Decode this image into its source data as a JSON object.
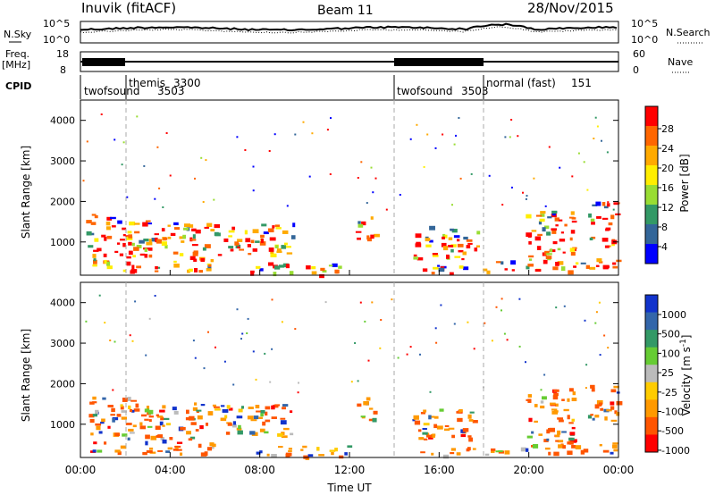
{
  "header": {
    "station": "Inuvik (fitACF)",
    "beam": "Beam 11",
    "date": "28/Nov/2015"
  },
  "chart_data": [
    {
      "type": "line",
      "panel": "noise",
      "left_label": "N.Sky",
      "right_label": "N.Search",
      "yticks": [
        "10^5",
        "10^0"
      ],
      "log_scale": true,
      "x": [
        "00:00",
        "04:00",
        "08:00",
        "12:00",
        "16:00",
        "20:00",
        "00:00"
      ]
    },
    {
      "type": "line",
      "panel": "frequency",
      "left_label_top": "Freq.",
      "left_label_unit": "[MHz]",
      "left_ticks": [
        "18",
        "8"
      ],
      "right_label": "Nave",
      "right_ticks": [
        "60",
        "0"
      ],
      "x": [
        "00:00",
        "04:00",
        "08:00",
        "12:00",
        "16:00",
        "20:00",
        "00:00"
      ]
    },
    {
      "type": "table",
      "panel": "cpid",
      "label": "CPID",
      "segments": [
        {
          "start_hour": 0,
          "end_hour": 2,
          "name": "twofsound",
          "id": "3503"
        },
        {
          "start_hour": 2,
          "end_hour": 14,
          "name": "themis",
          "id": "3300"
        },
        {
          "start_hour": 14,
          "end_hour": 18,
          "name": "twofsound",
          "id": "3503"
        },
        {
          "start_hour": 18,
          "end_hour": 24,
          "name": "normal (fast)",
          "id": "151"
        }
      ]
    },
    {
      "type": "heatmap",
      "panel": "power",
      "ylabel": "Slant Range [km]",
      "yticks": [
        1000,
        2000,
        3000,
        4000
      ],
      "ylim": [
        180,
        4500
      ],
      "xlim_hours": [
        0,
        24
      ],
      "colorbar_label": "Power [dB]",
      "colorbar_ticks": [
        "28",
        "24",
        "20",
        "16",
        "12",
        "8",
        "4"
      ],
      "colors": [
        "#ff0000",
        "#ff6600",
        "#ffaa00",
        "#ffee00",
        "#99dd33",
        "#339966",
        "#336699",
        "#0000ff"
      ],
      "grid": false
    },
    {
      "type": "heatmap",
      "panel": "velocity",
      "ylabel": "Slant Range [km]",
      "yticks": [
        1000,
        2000,
        3000,
        4000
      ],
      "ylim": [
        180,
        4500
      ],
      "xlim_hours": [
        0,
        24
      ],
      "xlabel": "Time UT",
      "xticks": [
        "00:00",
        "04:00",
        "08:00",
        "12:00",
        "16:00",
        "20:00",
        "00:00"
      ],
      "colorbar_label": "Velocity [m s",
      "colorbar_label_sup": "-1",
      "colorbar_label_end": "]",
      "colorbar_ticks": [
        "1000",
        "500",
        "100",
        "25",
        "-25",
        "-100",
        "-500",
        "-1000"
      ],
      "colors": [
        "#1133cc",
        "#3366aa",
        "#339966",
        "#66cc33",
        "#bbbbbb",
        "#ffcc00",
        "#ff9900",
        "#ff5500",
        "#ff0000"
      ],
      "grid": false
    }
  ]
}
